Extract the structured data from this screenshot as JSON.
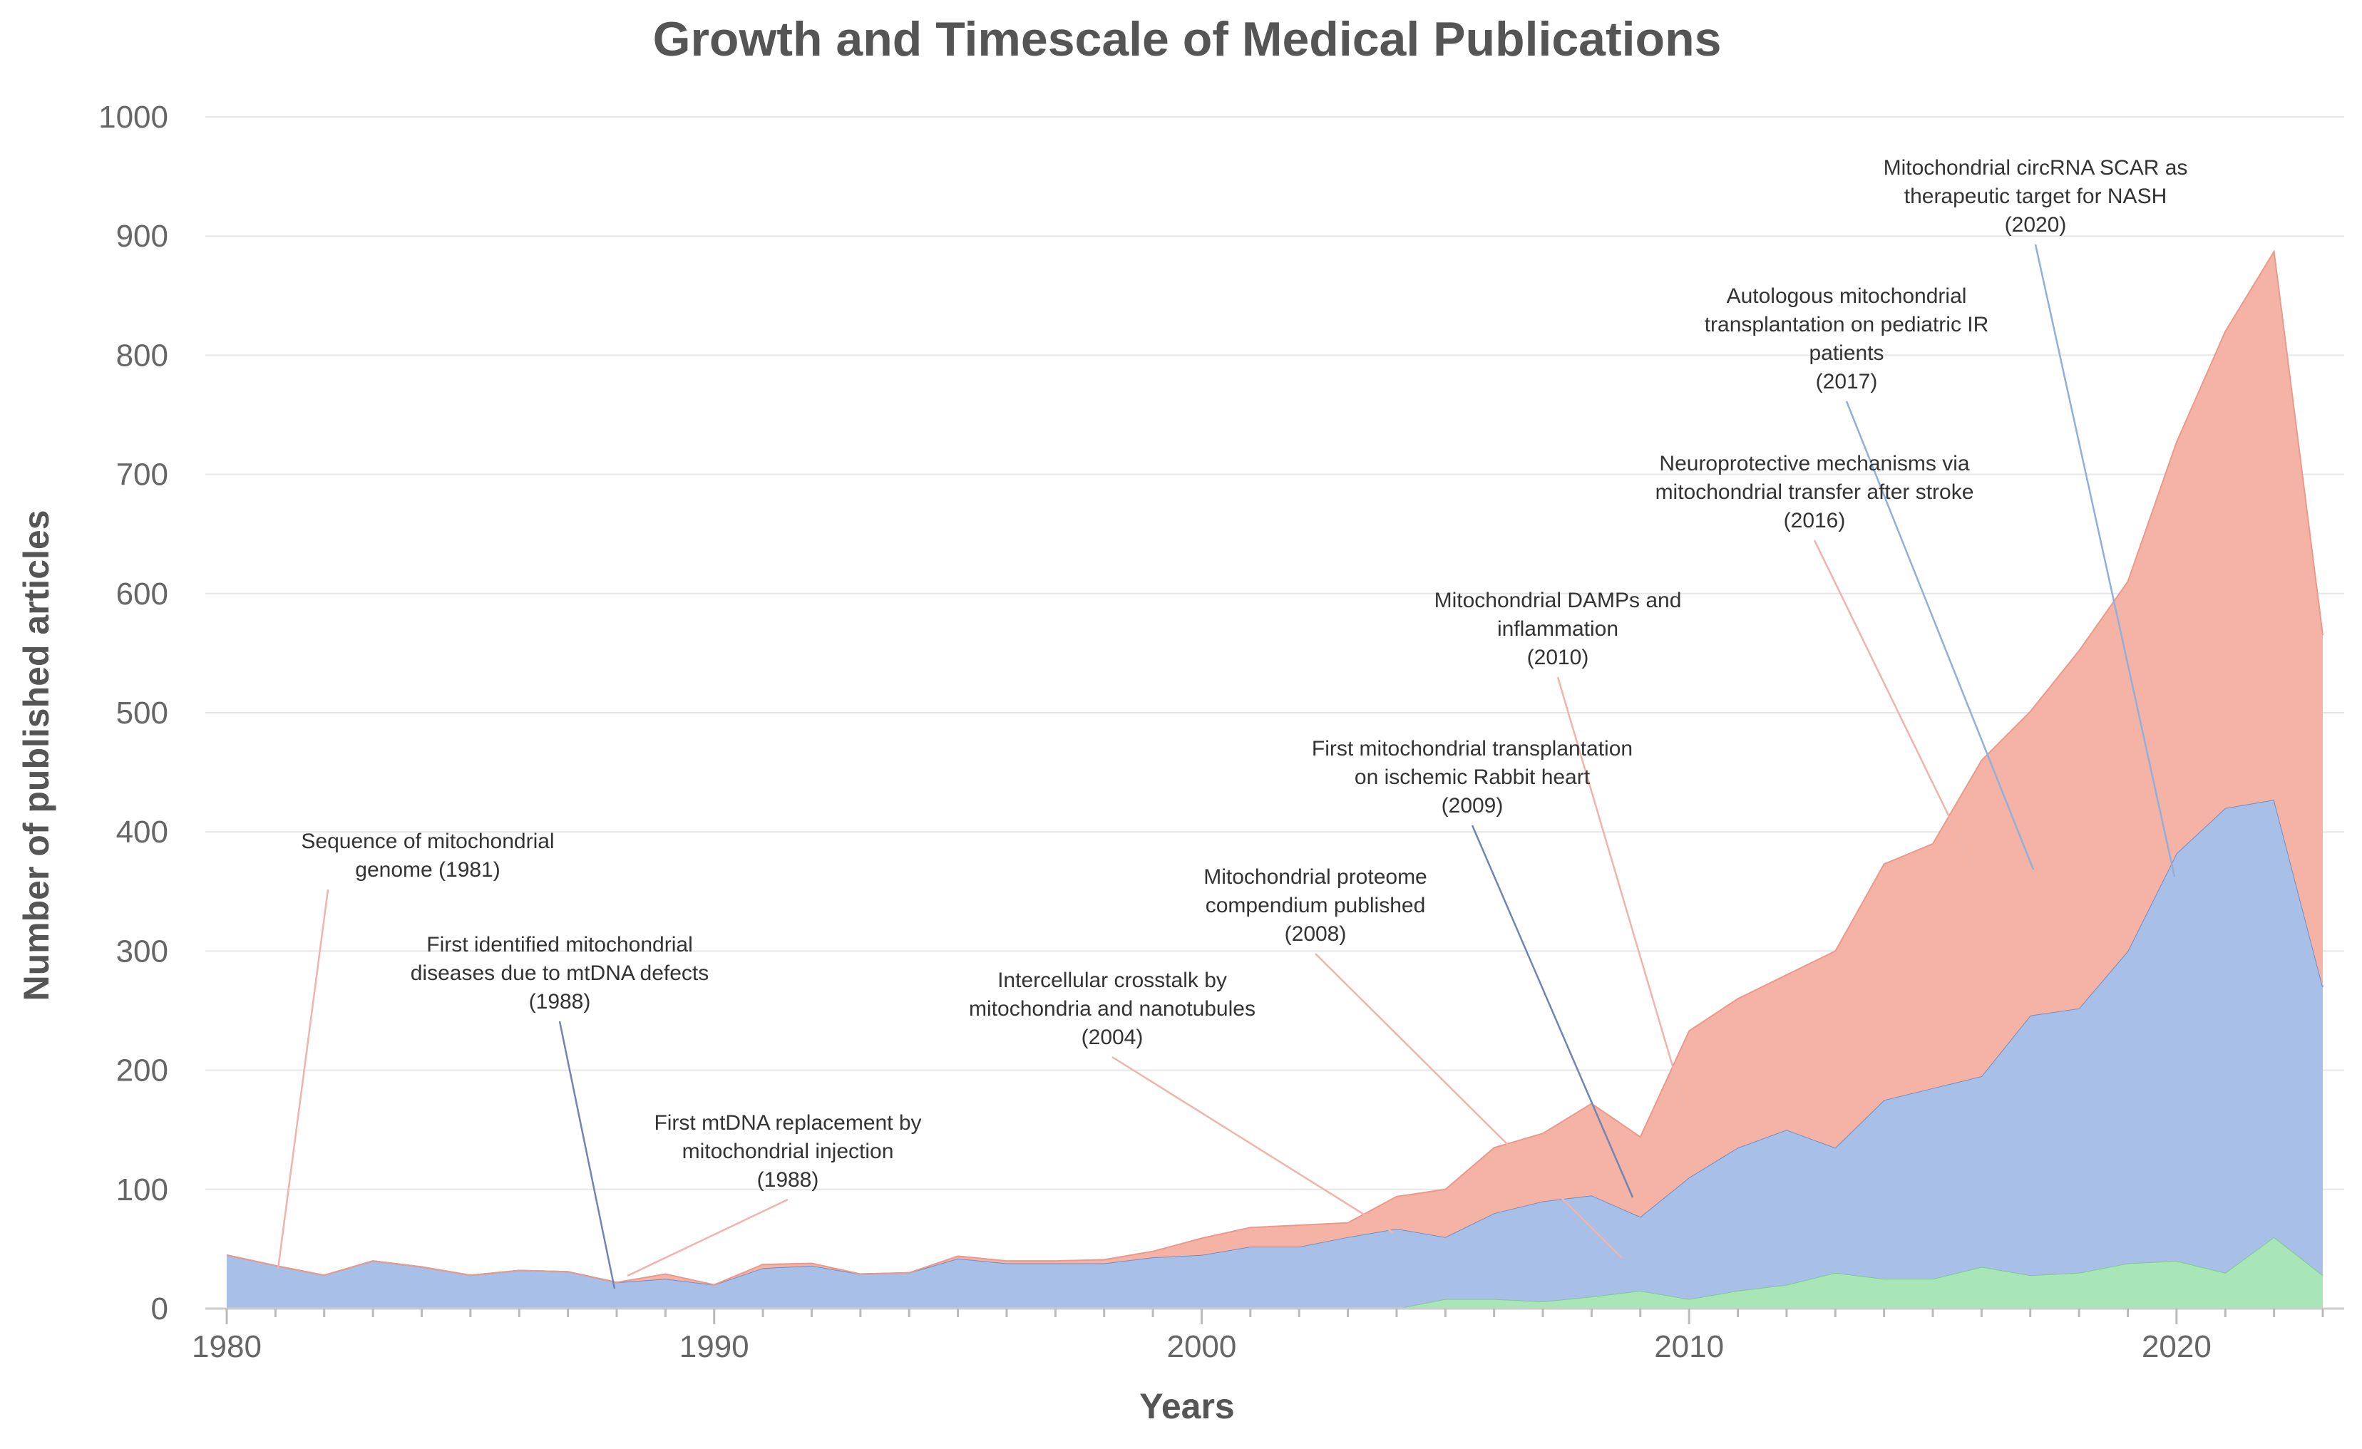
{
  "chart_data": {
    "type": "area",
    "stacked": true,
    "title": "Growth and Timescale of Medical Publications",
    "xlabel": "Years",
    "ylabel": "Number of published articles",
    "xlim": [
      1980,
      2023
    ],
    "ylim": [
      0,
      1000
    ],
    "xticks": [
      1980,
      1990,
      2000,
      2010,
      2020
    ],
    "yticks": [
      0,
      100,
      200,
      300,
      400,
      500,
      600,
      700,
      800,
      900,
      1000
    ],
    "grid": true,
    "x": [
      1980,
      1981,
      1982,
      1983,
      1984,
      1985,
      1986,
      1987,
      1988,
      1989,
      1990,
      1991,
      1992,
      1993,
      1994,
      1995,
      1996,
      1997,
      1998,
      1999,
      2000,
      2001,
      2002,
      2003,
      2004,
      2005,
      2006,
      2007,
      2008,
      2009,
      2010,
      2011,
      2012,
      2013,
      2014,
      2015,
      2016,
      2017,
      2018,
      2019,
      2020,
      2021,
      2022,
      2023
    ],
    "series": [
      {
        "color": "#a8e6b8",
        "values": [
          0,
          0,
          0,
          0,
          0,
          0,
          0,
          0,
          0,
          0,
          0,
          0,
          0,
          0,
          0,
          0,
          0,
          0,
          0,
          0,
          0,
          0,
          0,
          0,
          0,
          8,
          8,
          6,
          10,
          15,
          8,
          15,
          20,
          30,
          25,
          25,
          35,
          28,
          30,
          38,
          40,
          30,
          60,
          28
        ]
      },
      {
        "color": "#a8bfe8",
        "values": [
          45,
          36,
          28,
          40,
          35,
          28,
          32,
          31,
          22,
          25,
          20,
          34,
          36,
          29,
          30,
          42,
          38,
          38,
          38,
          43,
          45,
          52,
          52,
          60,
          67,
          52,
          72,
          84,
          85,
          62,
          102,
          120,
          130,
          105,
          150,
          160,
          160,
          218,
          222,
          262,
          342,
          390,
          367,
          242
        ]
      },
      {
        "color": "#f5b3a6",
        "values": [
          0,
          0,
          0,
          0,
          0,
          0,
          0,
          0,
          0,
          4,
          0,
          3,
          2,
          0,
          0,
          2,
          2,
          2,
          3,
          5,
          14,
          16,
          18,
          12,
          27,
          40,
          55,
          57,
          77,
          67,
          123,
          125,
          130,
          165,
          198,
          205,
          265,
          255,
          300,
          310,
          345,
          400,
          460,
          295
        ]
      }
    ],
    "annotations": [
      {
        "lines": [
          "Sequence of mitochondrial",
          "genome (1981)"
        ],
        "year": 1981,
        "color": "#f0b4ab"
      },
      {
        "lines": [
          "First identified mitochondrial",
          "diseases due to mtDNA defects",
          "(1988)"
        ],
        "year": 1988,
        "color": "#6f86b5"
      },
      {
        "lines": [
          "First mtDNA replacement by",
          "mitochondrial injection",
          "(1988)"
        ],
        "year": 1988,
        "color": "#f0b4ab"
      },
      {
        "lines": [
          "Intercellular crosstalk by",
          "mitochondria and nanotubules",
          "(2004)"
        ],
        "year": 2004,
        "color": "#f0b4ab"
      },
      {
        "lines": [
          "Mitochondrial proteome",
          "compendium published",
          "(2008)"
        ],
        "year": 2008,
        "color": "#f0b4ab"
      },
      {
        "lines": [
          "First mitochondrial transplantation",
          "on ischemic Rabbit heart",
          "(2009)"
        ],
        "year": 2009,
        "color": "#6f86b5"
      },
      {
        "lines": [
          "Mitochondrial DAMPs and",
          "inflammation",
          "(2010)"
        ],
        "year": 2010,
        "color": "#f0b4ab"
      },
      {
        "lines": [
          "Neuroprotective mechanisms via",
          "mitochondrial transfer after stroke",
          "(2016)"
        ],
        "year": 2016,
        "color": "#f0b4ab"
      },
      {
        "lines": [
          "Autologous mitochondrial",
          "transplantation on pediatric IR",
          "patients",
          "(2017)"
        ],
        "year": 2017,
        "color": "#8fb0dc"
      },
      {
        "lines": [
          "Mitochondrial circRNA SCAR as",
          "therapeutic target for NASH",
          "(2020)"
        ],
        "year": 2020,
        "color": "#8fb0dc"
      }
    ]
  }
}
